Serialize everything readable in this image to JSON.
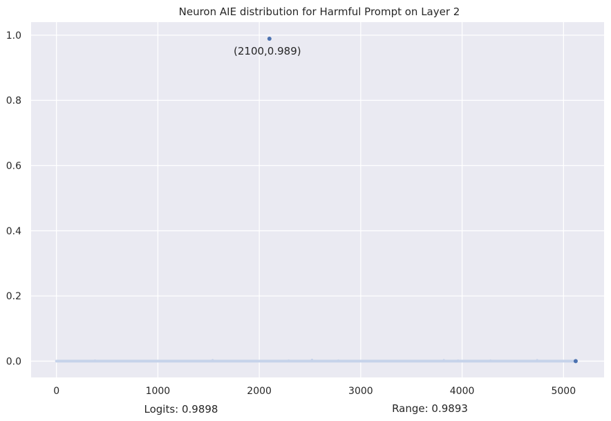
{
  "chart_data": {
    "type": "scatter",
    "title": "Neuron AIE distribution for Harmful Prompt on Layer 2",
    "xlabel": "",
    "ylabel": "",
    "xlim": [
      -250,
      5400
    ],
    "ylim": [
      -0.05,
      1.04
    ],
    "x_ticks": [
      0,
      1000,
      2000,
      3000,
      4000,
      5000
    ],
    "y_ticks": [
      0.0,
      0.2,
      0.4,
      0.6,
      0.8,
      1.0
    ],
    "x_tick_labels": [
      "0",
      "1000",
      "2000",
      "3000",
      "4000",
      "5000"
    ],
    "y_tick_labels": [
      "0.0",
      "0.2",
      "0.4",
      "0.6",
      "0.8",
      "1.0"
    ],
    "grid": true,
    "series": [
      {
        "x": [
          0,
          380,
          1540,
          2290,
          2520,
          2780,
          3820,
          3960,
          4280,
          4740,
          5120
        ],
        "y": [
          0.0,
          0.002,
          0.003,
          0.002,
          0.004,
          0.002,
          0.003,
          0.002,
          0.002,
          0.003,
          0.0
        ]
      },
      {
        "x": [
          2100
        ],
        "y": [
          0.989
        ]
      }
    ],
    "baseline": {
      "x_start": 0,
      "x_end": 5120,
      "y": 0.0
    },
    "annotations": [
      {
        "text": "(2100,0.989)",
        "x": 2100,
        "y": 0.989
      }
    ],
    "footer": {
      "logits": "Logits: 0.9898",
      "range": "Range: 0.9893"
    },
    "colors": {
      "background": "#eaeaf2",
      "grid": "#ffffff",
      "point": "#4c72b0",
      "baseline": "#c6d3ea"
    }
  }
}
